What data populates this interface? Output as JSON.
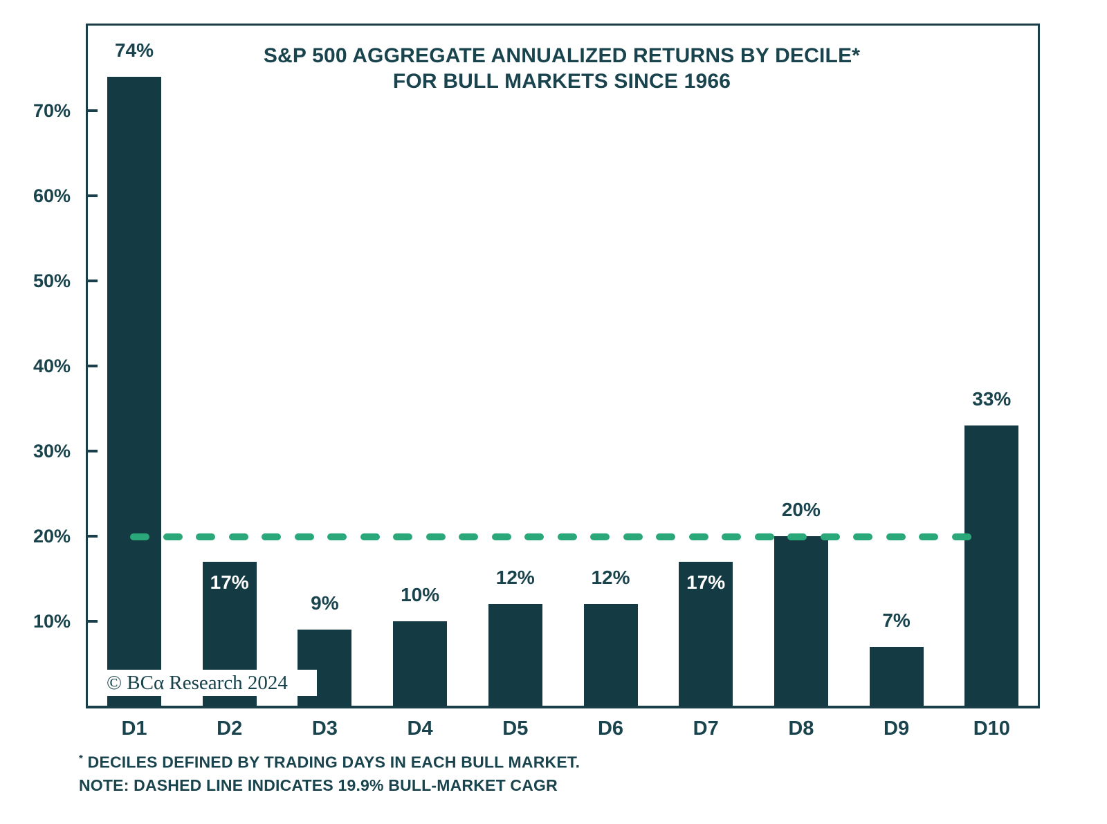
{
  "title": {
    "line1": "S&P 500 AGGREGATE ANNUALIZED RETURNS BY DECILE*",
    "line2": "FOR BULL MARKETS SINCE 1966"
  },
  "watermark": "© BCα Research 2024",
  "footnotes": {
    "asterisk": "*",
    "line1": " DECILES DEFINED BY TRADING DAYS IN EACH BULL MARKET.",
    "line2": "NOTE: DASHED LINE INDICATES 19.9% BULL-MARKET CAGR"
  },
  "colors": {
    "bar": "#143b43",
    "text": "#1a444d",
    "axis": "#1a3f48",
    "dashed_line": "#2aa87a",
    "inside_label": "#ffffff",
    "background": "#ffffff"
  },
  "chart_data": {
    "type": "bar",
    "title": "S&P 500 AGGREGATE ANNUALIZED RETURNS BY DECILE* FOR BULL MARKETS SINCE 1966",
    "categories": [
      "D1",
      "D2",
      "D3",
      "D4",
      "D5",
      "D6",
      "D7",
      "D8",
      "D9",
      "D10"
    ],
    "values": [
      74,
      17,
      9,
      10,
      12,
      12,
      17,
      20,
      7,
      33
    ],
    "value_labels": [
      "74%",
      "17%",
      "9%",
      "10%",
      "12%",
      "12%",
      "17%",
      "20%",
      "7%",
      "33%"
    ],
    "value_label_position": [
      "above",
      "inside",
      "above",
      "above",
      "above",
      "above",
      "inside",
      "above",
      "above",
      "above"
    ],
    "xlabel": "",
    "ylabel": "",
    "ylim": [
      0,
      80
    ],
    "yticks": [
      10,
      20,
      30,
      40,
      50,
      60,
      70
    ],
    "ytick_labels": [
      "10%",
      "20%",
      "30%",
      "40%",
      "50%",
      "60%",
      "70%"
    ],
    "grid": false,
    "legend": "none",
    "bar_color": "#143b43",
    "reference_line": {
      "value": 19.9,
      "style": "dashed",
      "color": "#2aa87a",
      "label": "19.9% BULL-MARKET CAGR"
    }
  }
}
